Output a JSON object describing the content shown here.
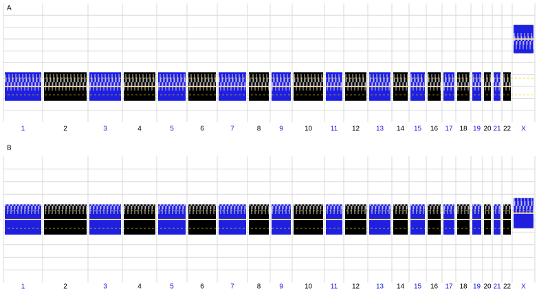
{
  "chart_data": [
    {
      "type": "cnv",
      "title": "A",
      "categories": [
        "1",
        "2",
        "3",
        "4",
        "5",
        "6",
        "7",
        "8",
        "9",
        "10",
        "11",
        "12",
        "13",
        "14",
        "15",
        "16",
        "17",
        "18",
        "19",
        "20",
        "21",
        "22",
        "X"
      ],
      "values": [
        0,
        0,
        0,
        0,
        0,
        0,
        0,
        0,
        0,
        0,
        0,
        0,
        0,
        0,
        0,
        0,
        0,
        0,
        0,
        0,
        0,
        0,
        4
      ],
      "palette": [
        "#1f1fe0",
        "#000000"
      ],
      "line_color": "#f2d9a0",
      "ylim": [
        -3,
        7
      ],
      "yticks": [
        -2,
        -1,
        0,
        1,
        2,
        3,
        4,
        5,
        6
      ],
      "grid": true
    },
    {
      "type": "cnv",
      "title": "B",
      "categories": [
        "1",
        "2",
        "3",
        "4",
        "5",
        "6",
        "7",
        "8",
        "9",
        "10",
        "11",
        "12",
        "13",
        "14",
        "15",
        "16",
        "17",
        "18",
        "19",
        "20",
        "21",
        "22",
        "X"
      ],
      "values": [
        0,
        0,
        0,
        0,
        0,
        0,
        0,
        0,
        0,
        0,
        0,
        0,
        0,
        0,
        0,
        0,
        0,
        0,
        0,
        0,
        0,
        0,
        0.5
      ],
      "palette": [
        "#1f1fe0",
        "#000000"
      ],
      "line_color": "#f2d9a0",
      "ylim": [
        -5,
        5
      ],
      "yticks": [
        -4,
        -3,
        -2,
        -1,
        0,
        1,
        2,
        3,
        4
      ],
      "grid": true
    }
  ]
}
